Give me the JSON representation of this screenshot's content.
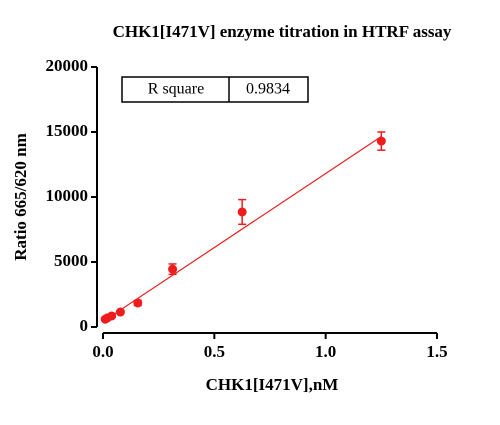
{
  "chart_data": {
    "type": "scatter",
    "title": "CHK1[I471V] enzyme titration in HTRF assay",
    "x_label": "CHK1[I471V],nM",
    "y_label": "Ratio 665/620 nm",
    "x": [
      0.009765625,
      0.01953125,
      0.0390625,
      0.078125,
      0.15625,
      0.3125,
      0.625,
      1.25
    ],
    "series": [
      {
        "color": "#ee1c1c",
        "values": [
          600,
          700,
          850,
          1150,
          1850,
          4450,
          8850,
          14300
        ],
        "errors": [
          60,
          60,
          80,
          120,
          200,
          400,
          950,
          700
        ]
      }
    ],
    "fit_line": {
      "x": [
        0,
        1.25
      ],
      "y": [
        420,
        14650
      ],
      "color": "#ee1c1c"
    },
    "stat_table": {
      "label": "R square",
      "value": "0.9834"
    },
    "xlim": [
      0,
      1.5
    ],
    "xticks": [
      {
        "value": 0,
        "label": "0.0"
      },
      0.5,
      {
        "value": 1,
        "label": "1.0"
      },
      1.5
    ],
    "ylim": [
      0,
      20000
    ],
    "yticks": [
      0,
      5000,
      10000,
      15000,
      20000
    ]
  }
}
